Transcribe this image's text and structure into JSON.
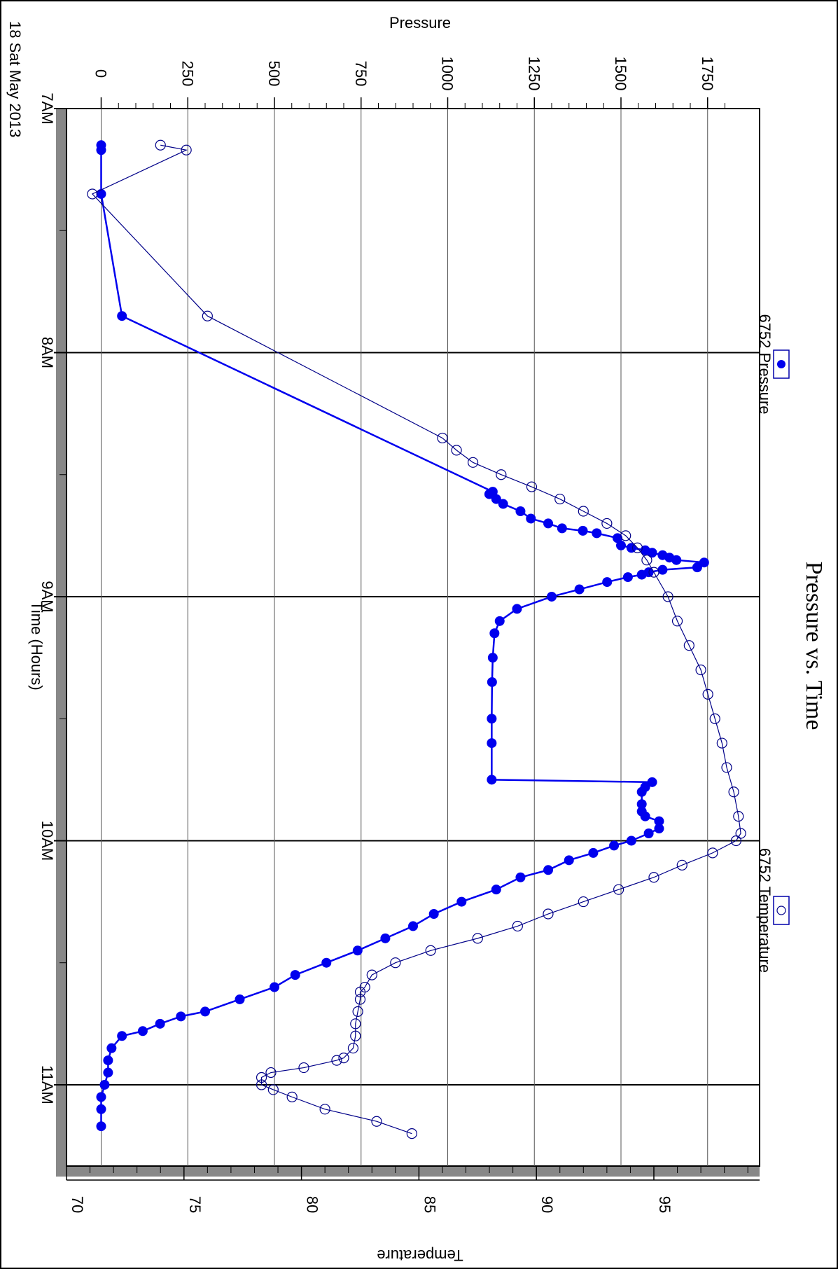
{
  "chart_data": {
    "type": "line",
    "title": "Pressure vs. Time",
    "xlabel": "Time (Hours)",
    "y_left_label": "Pressure",
    "y_right_label": "Temperature",
    "date_label": "18 Sat May 2013",
    "xlim": [
      7.0,
      11.333
    ],
    "ylim_left": [
      -100,
      1900
    ],
    "ylim_right": [
      70,
      99.5
    ],
    "x_ticks": [
      {
        "value": 7,
        "label": "7AM"
      },
      {
        "value": 8,
        "label": "8AM"
      },
      {
        "value": 9,
        "label": "9AM"
      },
      {
        "value": 10,
        "label": "10AM"
      },
      {
        "value": 11,
        "label": "11AM"
      }
    ],
    "y_left_ticks": [
      0,
      250,
      500,
      750,
      1000,
      1250,
      1500,
      1750
    ],
    "y_right_ticks": [
      70,
      75,
      80,
      85,
      90,
      95
    ],
    "grid": true,
    "legend": {
      "placement": "top"
    },
    "series": [
      {
        "name": "6752 Pressure",
        "axis": "left",
        "marker": "filled-circle",
        "color": "#0000ee",
        "x": [
          7.15,
          7.17,
          7.35,
          7.85,
          8.57,
          8.58,
          8.6,
          8.62,
          8.65,
          8.68,
          8.7,
          8.72,
          8.73,
          8.74,
          8.76,
          8.79,
          8.8,
          8.81,
          8.82,
          8.83,
          8.84,
          8.85,
          8.86,
          8.88,
          8.89,
          8.9,
          8.91,
          8.92,
          8.94,
          8.97,
          9.0,
          9.05,
          9.1,
          9.15,
          9.25,
          9.35,
          9.5,
          9.6,
          9.75,
          9.76,
          9.78,
          9.8,
          9.85,
          9.88,
          9.9,
          9.92,
          9.95,
          9.97,
          10.0,
          10.02,
          10.05,
          10.08,
          10.12,
          10.15,
          10.2,
          10.25,
          10.3,
          10.35,
          10.4,
          10.45,
          10.5,
          10.55,
          10.6,
          10.65,
          10.7,
          10.72,
          10.75,
          10.78,
          10.8,
          10.85,
          10.9,
          10.95,
          11.0,
          11.05,
          11.1,
          11.17
        ],
        "y": [
          0,
          0,
          0,
          60,
          1130,
          1120,
          1140,
          1160,
          1210,
          1240,
          1290,
          1330,
          1390,
          1430,
          1490,
          1500,
          1530,
          1570,
          1590,
          1620,
          1640,
          1660,
          1740,
          1720,
          1620,
          1580,
          1560,
          1520,
          1460,
          1380,
          1300,
          1200,
          1150,
          1135,
          1130,
          1128,
          1127,
          1127,
          1127,
          1590,
          1570,
          1560,
          1560,
          1560,
          1570,
          1610,
          1610,
          1580,
          1530,
          1480,
          1420,
          1350,
          1290,
          1210,
          1140,
          1040,
          960,
          900,
          820,
          740,
          650,
          560,
          500,
          400,
          300,
          230,
          170,
          120,
          60,
          30,
          20,
          20,
          10,
          0,
          0,
          0
        ]
      },
      {
        "name": "6752 Temperature",
        "axis": "right",
        "marker": "open-circle",
        "color": "#000088",
        "x": [
          7.15,
          7.17,
          7.35,
          7.85,
          8.35,
          8.4,
          8.45,
          8.5,
          8.55,
          8.6,
          8.65,
          8.7,
          8.75,
          8.8,
          8.85,
          8.9,
          9.0,
          9.1,
          9.2,
          9.3,
          9.4,
          9.5,
          9.6,
          9.7,
          9.8,
          9.9,
          9.97,
          10.0,
          10.05,
          10.1,
          10.15,
          10.2,
          10.25,
          10.3,
          10.35,
          10.4,
          10.45,
          10.5,
          10.55,
          10.6,
          10.62,
          10.65,
          10.7,
          10.75,
          10.8,
          10.85,
          10.89,
          10.9,
          10.93,
          10.95,
          10.97,
          11.0,
          11.02,
          11.05,
          11.1,
          11.15,
          11.2
        ],
        "y": [
          74.0,
          75.1,
          71.1,
          76.0,
          86.0,
          86.6,
          87.3,
          88.5,
          89.8,
          91.0,
          92.0,
          93.0,
          93.8,
          94.3,
          94.7,
          95.0,
          95.6,
          96.0,
          96.5,
          97.0,
          97.3,
          97.6,
          97.9,
          98.1,
          98.4,
          98.6,
          98.7,
          98.5,
          97.5,
          96.2,
          95.0,
          93.5,
          92.0,
          90.5,
          89.2,
          87.5,
          85.5,
          84.0,
          83.0,
          82.7,
          82.5,
          82.5,
          82.4,
          82.3,
          82.3,
          82.2,
          81.8,
          81.5,
          80.1,
          78.7,
          78.3,
          78.3,
          78.8,
          79.6,
          81.0,
          83.2,
          84.7
        ]
      }
    ]
  }
}
